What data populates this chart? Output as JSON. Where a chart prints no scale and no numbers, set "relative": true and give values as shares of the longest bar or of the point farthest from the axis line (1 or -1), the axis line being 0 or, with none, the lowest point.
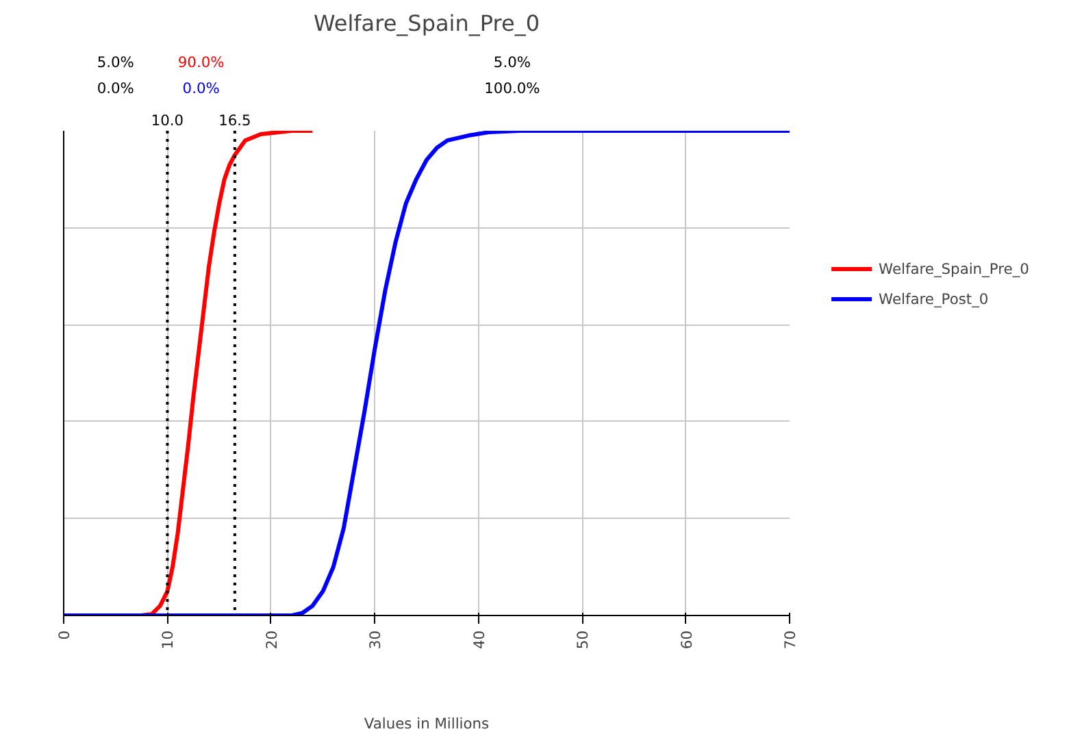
{
  "chart_data": {
    "type": "line",
    "title": "Welfare_Spain_Pre_0",
    "xlabel": "Values in Millions",
    "xlim": [
      0,
      70
    ],
    "xticks": [
      0,
      10,
      20,
      30,
      40,
      50,
      60,
      70
    ],
    "relative": true,
    "grid": true,
    "legend": "right",
    "line_style": "solid",
    "marker": "none",
    "series": [
      {
        "name": "Welfare_Spain_Pre_0",
        "color": "#ff0000",
        "x": [
          0,
          7.5,
          8.5,
          9.3,
          10,
          10.5,
          11,
          11.5,
          12,
          12.5,
          13,
          13.5,
          14,
          14.5,
          15,
          15.5,
          16,
          16.5,
          17.5,
          19,
          22,
          24
        ],
        "values": [
          0,
          0,
          0.003,
          0.02,
          0.05,
          0.1,
          0.17,
          0.26,
          0.35,
          0.45,
          0.54,
          0.63,
          0.72,
          0.79,
          0.85,
          0.9,
          0.93,
          0.95,
          0.98,
          0.993,
          1.0,
          1.0
        ]
      },
      {
        "name": "Welfare_Post_0",
        "color": "#0000ff",
        "x": [
          0,
          22,
          23,
          24,
          25,
          26,
          27,
          28,
          29,
          30,
          31,
          32,
          33,
          34,
          35,
          36,
          37,
          39,
          41,
          44,
          70
        ],
        "values": [
          0,
          0,
          0.005,
          0.02,
          0.05,
          0.1,
          0.18,
          0.3,
          0.42,
          0.55,
          0.67,
          0.77,
          0.85,
          0.9,
          0.94,
          0.965,
          0.98,
          0.99,
          0.997,
          1.0,
          1.0
        ]
      }
    ],
    "ref_lines": [
      {
        "axis": "x",
        "value": 10.0,
        "label": "10.0",
        "color": "#000000",
        "line_style": "dotted"
      },
      {
        "axis": "x",
        "value": 16.5,
        "label": "16.5",
        "color": "#000000",
        "line_style": "dotted"
      }
    ],
    "annotations": [
      "5.0%",
      "0.0%",
      "90.0%",
      "0.0%",
      "5.0%",
      "100.0%"
    ]
  }
}
